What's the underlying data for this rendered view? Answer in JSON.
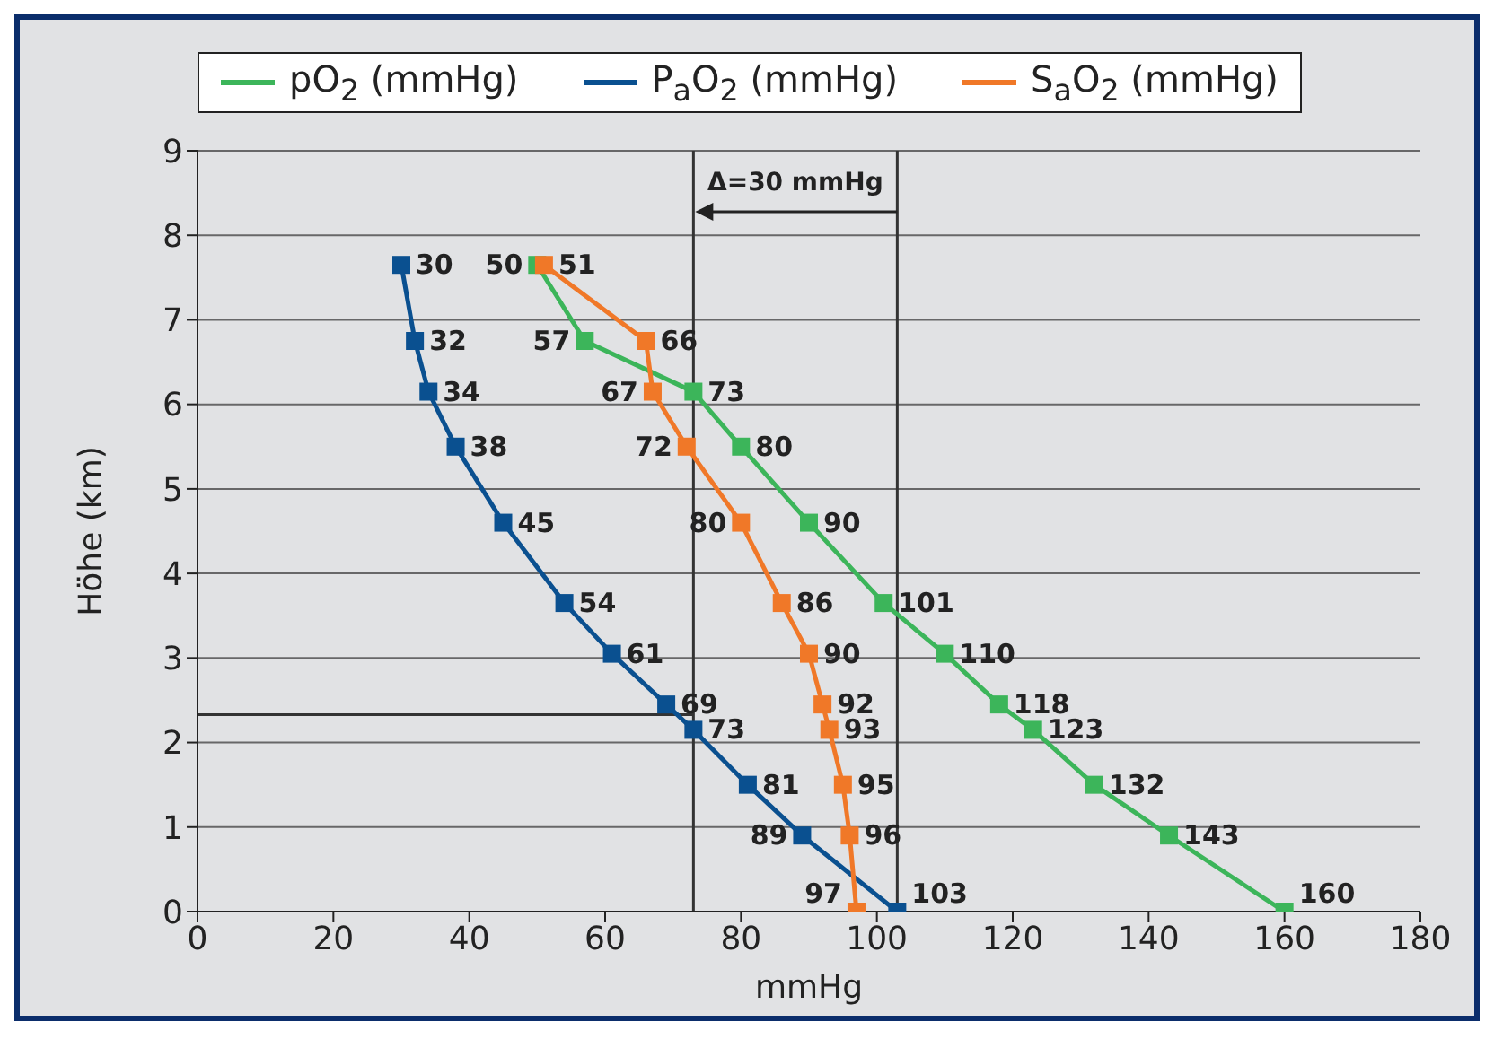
{
  "chart_data": {
    "type": "line",
    "orientation": "horizontal",
    "xlabel": "mmHg",
    "ylabel": "Höhe (km)",
    "series": [
      {
        "name": "pO$_{2}$ (mmHg)",
        "color": "#3cb55a",
        "x": [
          7.65,
          6.75,
          6.15,
          5.5,
          4.6,
          3.65,
          3.05,
          2.45,
          2.15,
          1.5,
          0.9,
          0
        ],
        "values": [
          50,
          57,
          73,
          80,
          90,
          101,
          110,
          118,
          123,
          132,
          143,
          160
        ]
      },
      {
        "name": "P$_{a}$O$_{2}$ (mmHg)",
        "color": "#0a5090",
        "x": [
          7.65,
          6.75,
          6.15,
          5.5,
          4.6,
          3.65,
          3.05,
          2.45,
          2.15,
          1.5,
          0.9,
          0
        ],
        "values": [
          30,
          32,
          34,
          38,
          45,
          54,
          61,
          69,
          73,
          81,
          89,
          103
        ]
      },
      {
        "name": "S$_{a}$O$_{2}$ (mmHg)",
        "color": "#f07828",
        "x": [
          7.65,
          6.75,
          6.15,
          5.5,
          4.6,
          3.65,
          3.05,
          2.45,
          2.15,
          1.5,
          0.9,
          0
        ],
        "values": [
          51,
          66,
          67,
          72,
          80,
          86,
          90,
          92,
          93,
          95,
          96,
          97
        ]
      }
    ],
    "xlim": [
      0,
      180
    ],
    "xticks": [
      0,
      20,
      40,
      60,
      80,
      100,
      120,
      140,
      160,
      180
    ],
    "ylim": [
      0,
      9
    ],
    "yticks": [
      0,
      1,
      2,
      3,
      4,
      5,
      6,
      7,
      8,
      9
    ],
    "ref_lines": [
      {
        "axis": "x",
        "value": 73,
        "color": "#333333"
      },
      {
        "axis": "x",
        "value": 103,
        "color": "#333333"
      },
      {
        "axis": "y",
        "value": 2.33,
        "color": "#333333"
      }
    ],
    "annotations": [
      "Δ=30 mmHg"
    ],
    "data_labels": true,
    "grid": "y",
    "legend": "top",
    "marker": "square",
    "line_style": "solid"
  }
}
